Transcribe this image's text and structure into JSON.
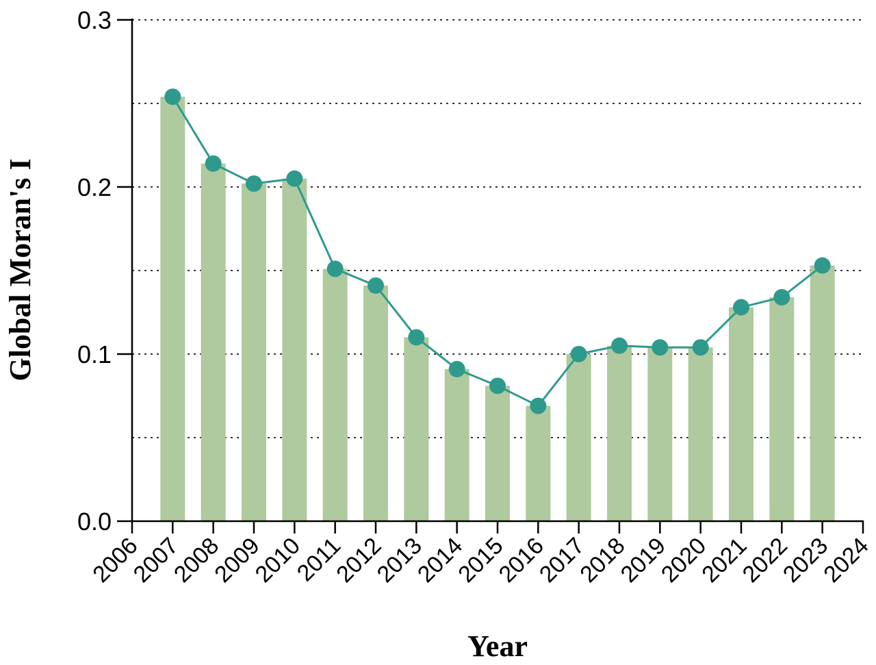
{
  "chart_data": {
    "type": "bar",
    "title": "",
    "xlabel": "Year",
    "ylabel": "Global Moran's I",
    "x_axis_ticks": [
      "2006",
      "2007",
      "2008",
      "2009",
      "2010",
      "2011",
      "2012",
      "2013",
      "2014",
      "2015",
      "2016",
      "2017",
      "2018",
      "2019",
      "2020",
      "2021",
      "2022",
      "2023",
      "2024"
    ],
    "categories": [
      "2007",
      "2008",
      "2009",
      "2010",
      "2011",
      "2012",
      "2013",
      "2014",
      "2015",
      "2016",
      "2017",
      "2018",
      "2019",
      "2020",
      "2021",
      "2022",
      "2023"
    ],
    "values": [
      0.254,
      0.214,
      0.202,
      0.205,
      0.151,
      0.141,
      0.11,
      0.091,
      0.081,
      0.069,
      0.1,
      0.105,
      0.104,
      0.104,
      0.128,
      0.134,
      0.153
    ],
    "series": [
      {
        "type": "bar",
        "values": [
          0.254,
          0.214,
          0.202,
          0.205,
          0.151,
          0.141,
          0.11,
          0.091,
          0.081,
          0.069,
          0.1,
          0.105,
          0.104,
          0.104,
          0.128,
          0.134,
          0.153
        ]
      },
      {
        "type": "line",
        "values": [
          0.254,
          0.214,
          0.202,
          0.205,
          0.151,
          0.141,
          0.11,
          0.091,
          0.081,
          0.069,
          0.1,
          0.105,
          0.104,
          0.104,
          0.128,
          0.134,
          0.153
        ]
      }
    ],
    "ylim": [
      0,
      0.3
    ],
    "xlim": [
      2006,
      2024
    ],
    "y_ticks": [
      "0.0",
      "0.1",
      "0.2",
      "0.3"
    ],
    "y_tick_values": [
      0,
      0.1,
      0.2,
      0.3
    ],
    "grid_lines": [
      0.05,
      0.1,
      0.15,
      0.2,
      0.25,
      0.3
    ],
    "grid": true,
    "colors": {
      "bar": "#afca9e",
      "line": "#2e9a8c",
      "marker": "#2e9a8c",
      "axis": "#000000",
      "grid": "#333333"
    }
  }
}
